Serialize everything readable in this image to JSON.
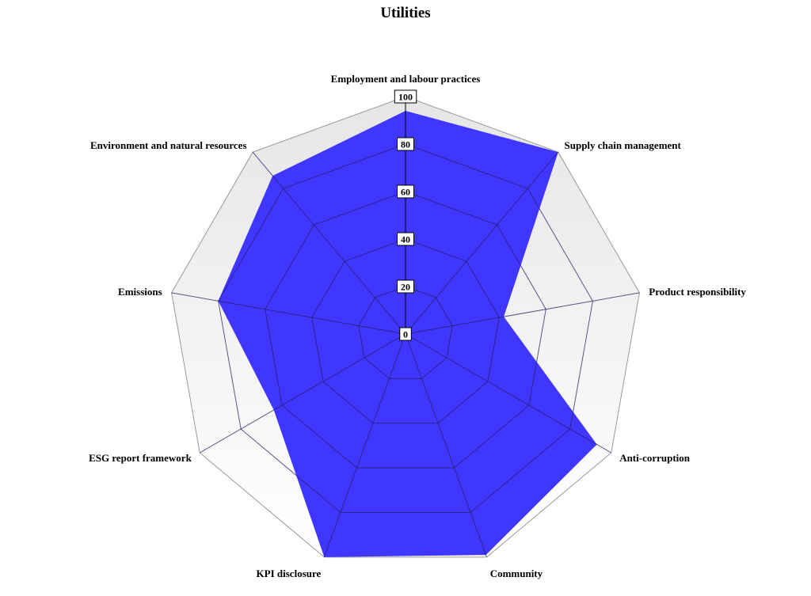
{
  "chart_data": {
    "type": "radar",
    "title": "Utilities",
    "categories": [
      "Employment and labour practices",
      "Supply chain management",
      "Product responsibility",
      "Anti-corruption",
      "Community",
      "KPI disclosure",
      "ESG report framework",
      "Emissions",
      "Environment and natural resources"
    ],
    "series": [
      {
        "values": [
          94,
          100,
          42,
          93,
          99,
          100,
          64,
          80,
          87
        ]
      }
    ],
    "rlim": [
      0,
      100
    ],
    "rticks": [
      0,
      20,
      40,
      60,
      80,
      100
    ],
    "rtick_labels": [
      "0",
      "20",
      "40",
      "60",
      "80",
      "100"
    ],
    "colors": {
      "series_fill": "#3f37ff",
      "grid_line": "#999999",
      "inner_grid_line": "#222266",
      "background_gradient_top": "#e6e6e6",
      "background_gradient_bottom": "#ffffff"
    }
  }
}
